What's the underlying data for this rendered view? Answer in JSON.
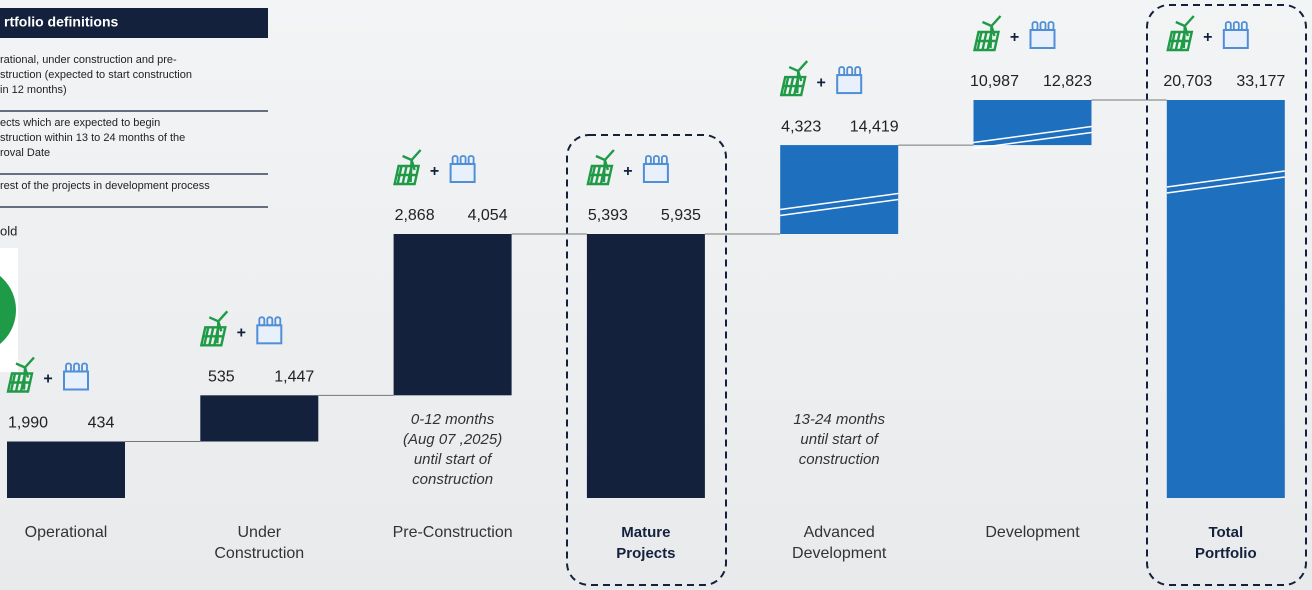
{
  "chart_data": {
    "type": "waterfall",
    "categories": [
      [
        "Operational"
      ],
      [
        "Under",
        "Construction"
      ],
      [
        "Pre-Construction"
      ],
      [
        "Mature",
        "Projects"
      ],
      [
        "Advanced",
        "Development"
      ],
      [
        "Development"
      ],
      [
        "Total",
        "Portfolio"
      ]
    ],
    "series": [
      {
        "color": "#1f9a47",
        "values": [
          1990,
          535,
          2868,
          5393,
          4323,
          10987,
          20703
        ]
      },
      {
        "color": "#4f8fd8",
        "values": [
          434,
          1447,
          4054,
          5935,
          14419,
          12823,
          33177
        ]
      }
    ],
    "value_labels": [
      [
        "1,990",
        "535",
        "2,868",
        "5,393",
        "4,323",
        "10,987",
        "20,703"
      ],
      [
        "434",
        "1,447",
        "4,054",
        "5,935",
        "14,419",
        "12,823",
        "33,177"
      ]
    ],
    "bar_kinds": [
      "step",
      "step",
      "step",
      "subtotal",
      "step",
      "step",
      "total"
    ],
    "bar_colors": [
      "#14213d",
      "#14213d",
      "#14213d",
      "#14213d",
      "#1f6fbf",
      "#1f6fbf",
      "#1f6fbf"
    ],
    "highlight": [
      3,
      6
    ],
    "icon_separator": "+",
    "annotations": [
      {
        "category": 2,
        "lines": [
          "0-12 months",
          "(Aug 07 ,2025)",
          "until start of",
          "construction"
        ]
      },
      {
        "category": 4,
        "lines": [
          "13-24 months",
          "until start of",
          "construction"
        ]
      }
    ]
  },
  "side_panel": {
    "title": "rtfolio definitions",
    "items": [
      [
        "rational, under construction and pre-",
        "struction (expected to start construction",
        "in 12 months)"
      ],
      [
        "ects which are expected to begin",
        "struction within 13 to 24 months of the",
        "roval Date"
      ],
      [
        "rest of the projects in development process"
      ]
    ],
    "legend_label": "old"
  }
}
